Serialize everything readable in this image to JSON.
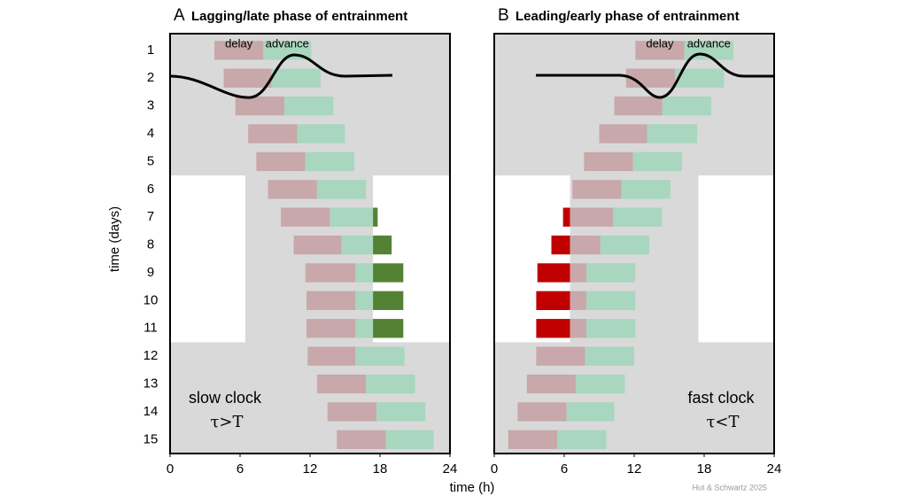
{
  "chart_data": [
    {
      "type": "bar",
      "panel_label": "A",
      "title": "Lagging/late phase of entrainment",
      "series_names": [
        "delay",
        "advance"
      ],
      "annotation": [
        "slow clock",
        "τ>T"
      ],
      "annotation_position": "lower left",
      "xlim": [
        0,
        24
      ],
      "xticks": [
        0,
        6,
        12,
        18,
        24
      ],
      "ylim": [
        0.4,
        15.5
      ],
      "yticks": [
        1,
        2,
        3,
        4,
        5,
        6,
        7,
        8,
        9,
        10,
        11,
        12,
        13,
        14,
        15
      ],
      "days": [
        1,
        2,
        3,
        4,
        5,
        6,
        7,
        8,
        9,
        10,
        11,
        12,
        13,
        14,
        15
      ],
      "delay_start": [
        3.8,
        4.6,
        5.6,
        6.7,
        7.4,
        8.4,
        9.5,
        10.6,
        11.6,
        11.7,
        11.7,
        11.8,
        12.6,
        13.5,
        14.3
      ],
      "phase": [
        8.0,
        8.7,
        9.8,
        10.9,
        11.6,
        12.6,
        13.7,
        14.7,
        15.9,
        15.9,
        15.9,
        15.9,
        16.8,
        17.7,
        18.5
      ],
      "advance_end": [
        12.1,
        12.9,
        14.0,
        15.0,
        15.8,
        16.8,
        17.8,
        19.0,
        20.0,
        20.0,
        20.0,
        20.1,
        21.0,
        21.9,
        22.6
      ],
      "light": [
        {
          "x": [
            0,
            6.45
          ],
          "y": [
            5.5,
            11.5
          ]
        },
        {
          "x": [
            17.4,
            24
          ],
          "y": [
            5.5,
            11.5
          ]
        }
      ],
      "colors": {
        "background": "#d9d9d9",
        "light": "#ffffff",
        "delay": "#c8a8aa",
        "advance": "#a9d6bf",
        "delay_in_light": "#c00000",
        "advance_in_light": "#548235"
      }
    },
    {
      "type": "bar",
      "panel_label": "B",
      "title": "Leading/early phase of entrainment",
      "series_names": [
        "delay",
        "advance"
      ],
      "annotation": [
        "fast clock",
        "τ<T"
      ],
      "annotation_position": "lower right",
      "xlim": [
        0,
        24
      ],
      "xticks": [
        0,
        6,
        12,
        18,
        24
      ],
      "ylim": [
        0.4,
        15.5
      ],
      "days": [
        1,
        2,
        3,
        4,
        5,
        6,
        7,
        8,
        9,
        10,
        11,
        12,
        13,
        14,
        15
      ],
      "delay_start": [
        12.1,
        11.3,
        10.3,
        9.0,
        7.7,
        6.7,
        5.9,
        4.9,
        3.7,
        3.6,
        3.6,
        3.6,
        2.8,
        2.0,
        1.2
      ],
      "phase": [
        16.3,
        15.5,
        14.4,
        13.1,
        11.9,
        10.9,
        10.2,
        9.1,
        7.9,
        7.9,
        7.9,
        7.8,
        7.0,
        6.2,
        5.4
      ],
      "advance_end": [
        20.5,
        19.7,
        18.6,
        17.4,
        16.1,
        15.1,
        14.4,
        13.3,
        12.1,
        12.1,
        12.1,
        12.0,
        11.2,
        10.3,
        9.6
      ],
      "light": [
        {
          "x": [
            0,
            6.5
          ],
          "y": [
            5.5,
            11.5
          ]
        },
        {
          "x": [
            17.5,
            24
          ],
          "y": [
            5.5,
            11.5
          ]
        }
      ],
      "colors": {
        "background": "#d9d9d9",
        "light": "#ffffff",
        "delay": "#c8a8aa",
        "advance": "#a9d6bf",
        "delay_in_light": "#c00000",
        "advance_in_light": "#548235"
      }
    }
  ],
  "xlabel": "time (h)",
  "ylabel": "time (days)",
  "credit": "Hut & Schwartz 2025"
}
